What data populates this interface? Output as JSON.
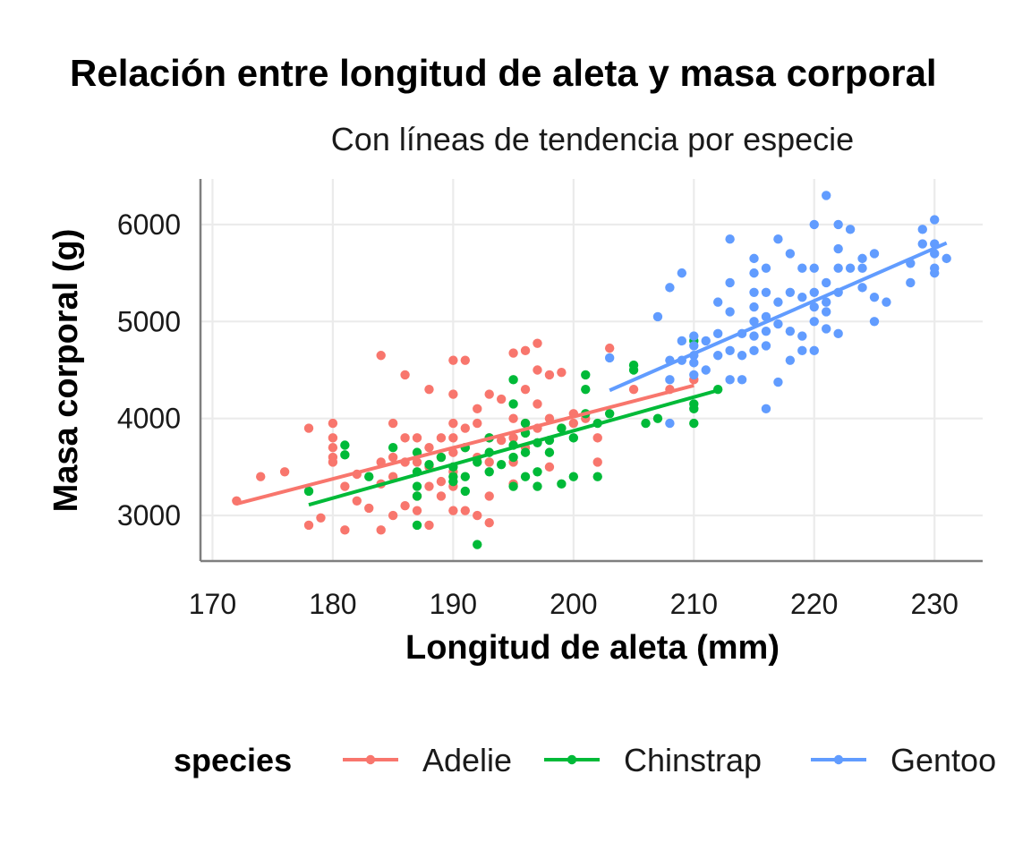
{
  "chart_data": {
    "type": "scatter",
    "title": "Relación entre longitud de aleta y masa corporal",
    "subtitle": "Con líneas de tendencia por especie",
    "xlabel": "Longitud de aleta (mm)",
    "ylabel": "Masa corporal (g)",
    "xlim": [
      169,
      234
    ],
    "ylim": [
      2530,
      6470
    ],
    "xticks": [
      170,
      180,
      190,
      200,
      210,
      220,
      230
    ],
    "yticks": [
      3000,
      4000,
      5000,
      6000
    ],
    "grid": true,
    "legend": {
      "title": "species",
      "position": "bottom"
    },
    "series": [
      {
        "name": "Adelie",
        "color": "#F8766D",
        "trend": [
          [
            172,
            3120
          ],
          [
            210,
            4340
          ]
        ],
        "points": [
          [
            172,
            3150
          ],
          [
            174,
            3400
          ],
          [
            176,
            3450
          ],
          [
            178,
            3900
          ],
          [
            178,
            2900
          ],
          [
            179,
            2975
          ],
          [
            180,
            3950
          ],
          [
            180,
            3800
          ],
          [
            180,
            3700
          ],
          [
            180,
            3600
          ],
          [
            180,
            3550
          ],
          [
            181,
            3300
          ],
          [
            181,
            2850
          ],
          [
            182,
            3425
          ],
          [
            182,
            3150
          ],
          [
            183,
            3075
          ],
          [
            184,
            4650
          ],
          [
            184,
            3550
          ],
          [
            184,
            3325
          ],
          [
            184,
            2850
          ],
          [
            185,
            3950
          ],
          [
            185,
            3600
          ],
          [
            185,
            3400
          ],
          [
            185,
            3000
          ],
          [
            186,
            4450
          ],
          [
            186,
            3800
          ],
          [
            186,
            3550
          ],
          [
            186,
            3100
          ],
          [
            187,
            3800
          ],
          [
            187,
            3550
          ],
          [
            187,
            3200
          ],
          [
            187,
            3050
          ],
          [
            188,
            4300
          ],
          [
            188,
            3700
          ],
          [
            188,
            3500
          ],
          [
            188,
            3300
          ],
          [
            188,
            2900
          ],
          [
            189,
            3800
          ],
          [
            189,
            3600
          ],
          [
            189,
            3350
          ],
          [
            189,
            3200
          ],
          [
            190,
            4600
          ],
          [
            190,
            4250
          ],
          [
            190,
            3950
          ],
          [
            190,
            3800
          ],
          [
            190,
            3650
          ],
          [
            190,
            3450
          ],
          [
            190,
            3300
          ],
          [
            190,
            3050
          ],
          [
            191,
            4600
          ],
          [
            191,
            3900
          ],
          [
            191,
            3700
          ],
          [
            191,
            3050
          ],
          [
            192,
            4100
          ],
          [
            192,
            3950
          ],
          [
            192,
            3600
          ],
          [
            192,
            3000
          ],
          [
            193,
            4250
          ],
          [
            193,
            3800
          ],
          [
            193,
            3550
          ],
          [
            193,
            3200
          ],
          [
            193,
            2925
          ],
          [
            194,
            4200
          ],
          [
            194,
            3775
          ],
          [
            195,
            4675
          ],
          [
            195,
            4000
          ],
          [
            195,
            3800
          ],
          [
            195,
            3550
          ],
          [
            195,
            3325
          ],
          [
            196,
            4700
          ],
          [
            196,
            4300
          ],
          [
            196,
            3950
          ],
          [
            196,
            3700
          ],
          [
            197,
            4775
          ],
          [
            197,
            4500
          ],
          [
            197,
            4150
          ],
          [
            197,
            3900
          ],
          [
            198,
            4450
          ],
          [
            198,
            4000
          ],
          [
            198,
            3500
          ],
          [
            199,
            4475
          ],
          [
            199,
            3900
          ],
          [
            200,
            4050
          ],
          [
            200,
            3950
          ],
          [
            201,
            4000
          ],
          [
            202,
            3800
          ],
          [
            202,
            3550
          ],
          [
            203,
            4725
          ],
          [
            205,
            4300
          ],
          [
            208,
            4300
          ],
          [
            210,
            4400
          ]
        ]
      },
      {
        "name": "Chinstrap",
        "color": "#00BA38",
        "trend": [
          [
            178,
            3110
          ],
          [
            212,
            4290
          ]
        ],
        "points": [
          [
            178,
            3250
          ],
          [
            181,
            3725
          ],
          [
            181,
            3625
          ],
          [
            183,
            3400
          ],
          [
            185,
            3700
          ],
          [
            187,
            3650
          ],
          [
            187,
            3450
          ],
          [
            187,
            3300
          ],
          [
            187,
            3200
          ],
          [
            187,
            2900
          ],
          [
            188,
            3525
          ],
          [
            189,
            3600
          ],
          [
            190,
            3500
          ],
          [
            190,
            3400
          ],
          [
            190,
            3350
          ],
          [
            191,
            3700
          ],
          [
            191,
            3400
          ],
          [
            191,
            3250
          ],
          [
            192,
            3550
          ],
          [
            192,
            2700
          ],
          [
            193,
            3800
          ],
          [
            193,
            3650
          ],
          [
            193,
            3450
          ],
          [
            194,
            3525
          ],
          [
            195,
            4400
          ],
          [
            195,
            4150
          ],
          [
            195,
            3725
          ],
          [
            195,
            3600
          ],
          [
            195,
            3300
          ],
          [
            196,
            3950
          ],
          [
            196,
            3850
          ],
          [
            196,
            3650
          ],
          [
            196,
            3400
          ],
          [
            197,
            3750
          ],
          [
            197,
            3450
          ],
          [
            197,
            3300
          ],
          [
            198,
            3775
          ],
          [
            198,
            3650
          ],
          [
            199,
            3900
          ],
          [
            199,
            3325
          ],
          [
            200,
            3800
          ],
          [
            200,
            3400
          ],
          [
            201,
            4450
          ],
          [
            201,
            4300
          ],
          [
            201,
            4050
          ],
          [
            202,
            3950
          ],
          [
            202,
            3400
          ],
          [
            203,
            4050
          ],
          [
            205,
            4550
          ],
          [
            205,
            4500
          ],
          [
            206,
            3950
          ],
          [
            207,
            4000
          ],
          [
            210,
            4800
          ],
          [
            210,
            4150
          ],
          [
            210,
            4100
          ],
          [
            210,
            3950
          ],
          [
            212,
            4300
          ]
        ]
      },
      {
        "name": "Gentoo",
        "color": "#619CFF",
        "trend": [
          [
            203,
            4290
          ],
          [
            231,
            5810
          ]
        ],
        "points": [
          [
            203,
            4625
          ],
          [
            207,
            5050
          ],
          [
            208,
            5350
          ],
          [
            208,
            4600
          ],
          [
            208,
            4400
          ],
          [
            208,
            3950
          ],
          [
            209,
            5500
          ],
          [
            209,
            4800
          ],
          [
            209,
            4600
          ],
          [
            210,
            4850
          ],
          [
            210,
            4750
          ],
          [
            210,
            4650
          ],
          [
            210,
            4575
          ],
          [
            210,
            4450
          ],
          [
            211,
            4800
          ],
          [
            211,
            4500
          ],
          [
            212,
            5200
          ],
          [
            212,
            4875
          ],
          [
            212,
            4650
          ],
          [
            213,
            5850
          ],
          [
            213,
            5400
          ],
          [
            213,
            5100
          ],
          [
            213,
            4700
          ],
          [
            213,
            4400
          ],
          [
            214,
            4875
          ],
          [
            214,
            4650
          ],
          [
            214,
            4400
          ],
          [
            215,
            5650
          ],
          [
            215,
            5500
          ],
          [
            215,
            5300
          ],
          [
            215,
            5150
          ],
          [
            215,
            5000
          ],
          [
            215,
            4850
          ],
          [
            215,
            4700
          ],
          [
            216,
            5550
          ],
          [
            216,
            5300
          ],
          [
            216,
            5050
          ],
          [
            216,
            4900
          ],
          [
            216,
            4750
          ],
          [
            216,
            4100
          ],
          [
            217,
            5850
          ],
          [
            217,
            5200
          ],
          [
            217,
            4975
          ],
          [
            217,
            4375
          ],
          [
            218,
            5700
          ],
          [
            218,
            5300
          ],
          [
            218,
            4900
          ],
          [
            218,
            4600
          ],
          [
            219,
            5550
          ],
          [
            219,
            5250
          ],
          [
            219,
            4850
          ],
          [
            219,
            4700
          ],
          [
            220,
            6000
          ],
          [
            220,
            5550
          ],
          [
            220,
            5300
          ],
          [
            220,
            5150
          ],
          [
            220,
            5000
          ],
          [
            220,
            4700
          ],
          [
            221,
            6300
          ],
          [
            221,
            5400
          ],
          [
            221,
            5200
          ],
          [
            221,
            5100
          ],
          [
            221,
            4925
          ],
          [
            222,
            6000
          ],
          [
            222,
            5750
          ],
          [
            222,
            5550
          ],
          [
            222,
            5300
          ],
          [
            222,
            4875
          ],
          [
            223,
            5950
          ],
          [
            223,
            5550
          ],
          [
            224,
            5650
          ],
          [
            224,
            5550
          ],
          [
            224,
            5350
          ],
          [
            225,
            5700
          ],
          [
            225,
            5250
          ],
          [
            225,
            5000
          ],
          [
            226,
            5200
          ],
          [
            228,
            5600
          ],
          [
            228,
            5400
          ],
          [
            229,
            5950
          ],
          [
            229,
            5800
          ],
          [
            230,
            6050
          ],
          [
            230,
            5800
          ],
          [
            230,
            5700
          ],
          [
            230,
            5550
          ],
          [
            230,
            5500
          ],
          [
            231,
            5650
          ]
        ]
      }
    ]
  }
}
